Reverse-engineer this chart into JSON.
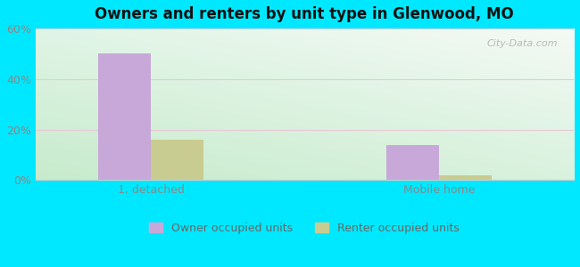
{
  "title": "Owners and renters by unit type in Glenwood, MO",
  "categories": [
    "1, detached",
    "Mobile home"
  ],
  "owner_values": [
    50,
    14
  ],
  "renter_values": [
    16,
    2
  ],
  "owner_color": "#c8a8d8",
  "renter_color": "#c8cc90",
  "ylim": [
    0,
    60
  ],
  "yticks": [
    0,
    20,
    40,
    60
  ],
  "ytick_labels": [
    "0%",
    "20%",
    "40%",
    "60%"
  ],
  "bg_outer": "#00e8ff",
  "legend_owner": "Owner occupied units",
  "legend_renter": "Renter occupied units",
  "bar_width": 0.55,
  "group_positions": [
    1.5,
    4.5
  ],
  "watermark": "City-Data.com",
  "grid_color": "#e8c8d8",
  "spine_color": "#cccccc"
}
